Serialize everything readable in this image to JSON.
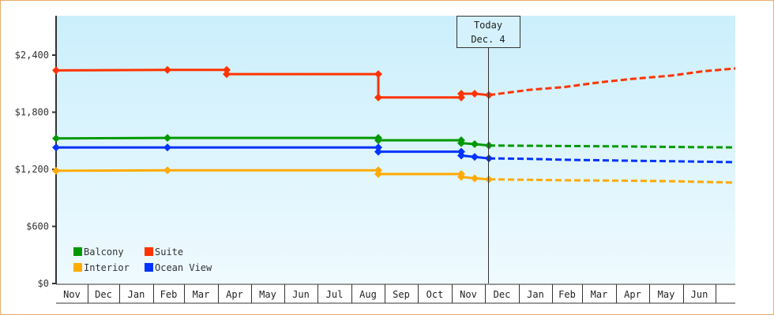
{
  "chart_data": {
    "type": "line",
    "title": "",
    "xlabel": "",
    "ylabel": "",
    "ylim": [
      0,
      2700
    ],
    "y_ticks": [
      {
        "value": 0,
        "label": "$0"
      },
      {
        "value": 600,
        "label": "$600"
      },
      {
        "value": 1200,
        "label": "$1,200"
      },
      {
        "value": 1800,
        "label": "$1,800"
      },
      {
        "value": 2400,
        "label": "$2,400"
      }
    ],
    "x_months": [
      "Nov",
      "Dec",
      "Jan",
      "Feb",
      "Mar",
      "Apr",
      "May",
      "Jun",
      "Jul",
      "Aug",
      "Sep",
      "Oct",
      "Nov",
      "Dec",
      "Jan",
      "Feb",
      "Mar",
      "Apr",
      "May",
      "Jun",
      ""
    ],
    "grid": false,
    "legend_position": "bottom-left inside plot",
    "today_marker": {
      "line1": "Today",
      "line2": "Dec. 4"
    },
    "series": [
      {
        "name": "Balcony",
        "color": "#009900",
        "historical": [
          {
            "date": "Nov 1",
            "value": 1525
          },
          {
            "date": "Feb 1",
            "value": 1530
          },
          {
            "date": "Aug 15",
            "value": 1530
          },
          {
            "date": "Aug 15",
            "value": 1505
          },
          {
            "date": "Nov 10",
            "value": 1505
          },
          {
            "date": "Nov 10",
            "value": 1475
          },
          {
            "date": "Nov 22",
            "value": 1465
          },
          {
            "date": "Dec 4",
            "value": 1450
          }
        ],
        "forecast": [
          {
            "date": "Dec 4",
            "value": 1450
          },
          {
            "date": "Feb",
            "value": 1445
          },
          {
            "date": "Apr",
            "value": 1440
          },
          {
            "date": "May",
            "value": 1435
          },
          {
            "date": "Jun end",
            "value": 1430
          }
        ]
      },
      {
        "name": "Suite",
        "color": "#ff3300",
        "historical": [
          {
            "date": "Nov 1",
            "value": 2240
          },
          {
            "date": "Feb 1",
            "value": 2245
          },
          {
            "date": "Apr 1",
            "value": 2245
          },
          {
            "date": "Apr 1",
            "value": 2200
          },
          {
            "date": "Aug 15",
            "value": 2200
          },
          {
            "date": "Aug 15",
            "value": 1955
          },
          {
            "date": "Nov 10",
            "value": 1955
          },
          {
            "date": "Nov 10",
            "value": 1995
          },
          {
            "date": "Nov 22",
            "value": 1995
          },
          {
            "date": "Dec 4",
            "value": 1980
          }
        ],
        "forecast": [
          {
            "date": "Dec 4",
            "value": 1980
          },
          {
            "date": "Jan",
            "value": 2035
          },
          {
            "date": "Feb",
            "value": 2065
          },
          {
            "date": "Mar",
            "value": 2115
          },
          {
            "date": "Apr",
            "value": 2150
          },
          {
            "date": "May",
            "value": 2185
          },
          {
            "date": "Jun",
            "value": 2230
          },
          {
            "date": "Jun end",
            "value": 2260
          }
        ]
      },
      {
        "name": "Interior",
        "color": "#ffaa00",
        "historical": [
          {
            "date": "Nov 1",
            "value": 1185
          },
          {
            "date": "Feb 1",
            "value": 1190
          },
          {
            "date": "Aug 15",
            "value": 1190
          },
          {
            "date": "Aug 15",
            "value": 1150
          },
          {
            "date": "Nov 10",
            "value": 1150
          },
          {
            "date": "Nov 10",
            "value": 1120
          },
          {
            "date": "Nov 22",
            "value": 1105
          },
          {
            "date": "Dec 4",
            "value": 1095
          }
        ],
        "forecast": [
          {
            "date": "Dec 4",
            "value": 1095
          },
          {
            "date": "Jan",
            "value": 1090
          },
          {
            "date": "Feb",
            "value": 1085
          },
          {
            "date": "Apr",
            "value": 1080
          },
          {
            "date": "May",
            "value": 1075
          },
          {
            "date": "Jun end",
            "value": 1060
          }
        ]
      },
      {
        "name": "Ocean View",
        "color": "#0033ff",
        "historical": [
          {
            "date": "Nov 1",
            "value": 1430
          },
          {
            "date": "Feb 1",
            "value": 1430
          },
          {
            "date": "Aug 15",
            "value": 1430
          },
          {
            "date": "Aug 15",
            "value": 1385
          },
          {
            "date": "Nov 10",
            "value": 1385
          },
          {
            "date": "Nov 10",
            "value": 1345
          },
          {
            "date": "Nov 22",
            "value": 1330
          },
          {
            "date": "Dec 4",
            "value": 1315
          }
        ],
        "forecast": [
          {
            "date": "Dec 4",
            "value": 1315
          },
          {
            "date": "Jan",
            "value": 1310
          },
          {
            "date": "Feb",
            "value": 1300
          },
          {
            "date": "Apr",
            "value": 1290
          },
          {
            "date": "May",
            "value": 1285
          },
          {
            "date": "Jun end",
            "value": 1275
          }
        ]
      }
    ]
  },
  "legend": [
    {
      "label": "Balcony",
      "color": "#009900"
    },
    {
      "label": "Suite",
      "color": "#ff3300"
    },
    {
      "label": "Interior",
      "color": "#ffaa00"
    },
    {
      "label": "Ocean View",
      "color": "#0033ff"
    }
  ],
  "today": {
    "line1": "Today",
    "line2": "Dec. 4"
  },
  "y_axis": [
    "$2,400",
    "$1,800",
    "$1,200",
    "$600",
    "$0"
  ],
  "x_axis": [
    "Nov",
    "Dec",
    "Jan",
    "Feb",
    "Mar",
    "Apr",
    "May",
    "Jun",
    "Jul",
    "Aug",
    "Sep",
    "Oct",
    "Nov",
    "Dec",
    "Jan",
    "Feb",
    "Mar",
    "Apr",
    "May",
    "Jun"
  ]
}
